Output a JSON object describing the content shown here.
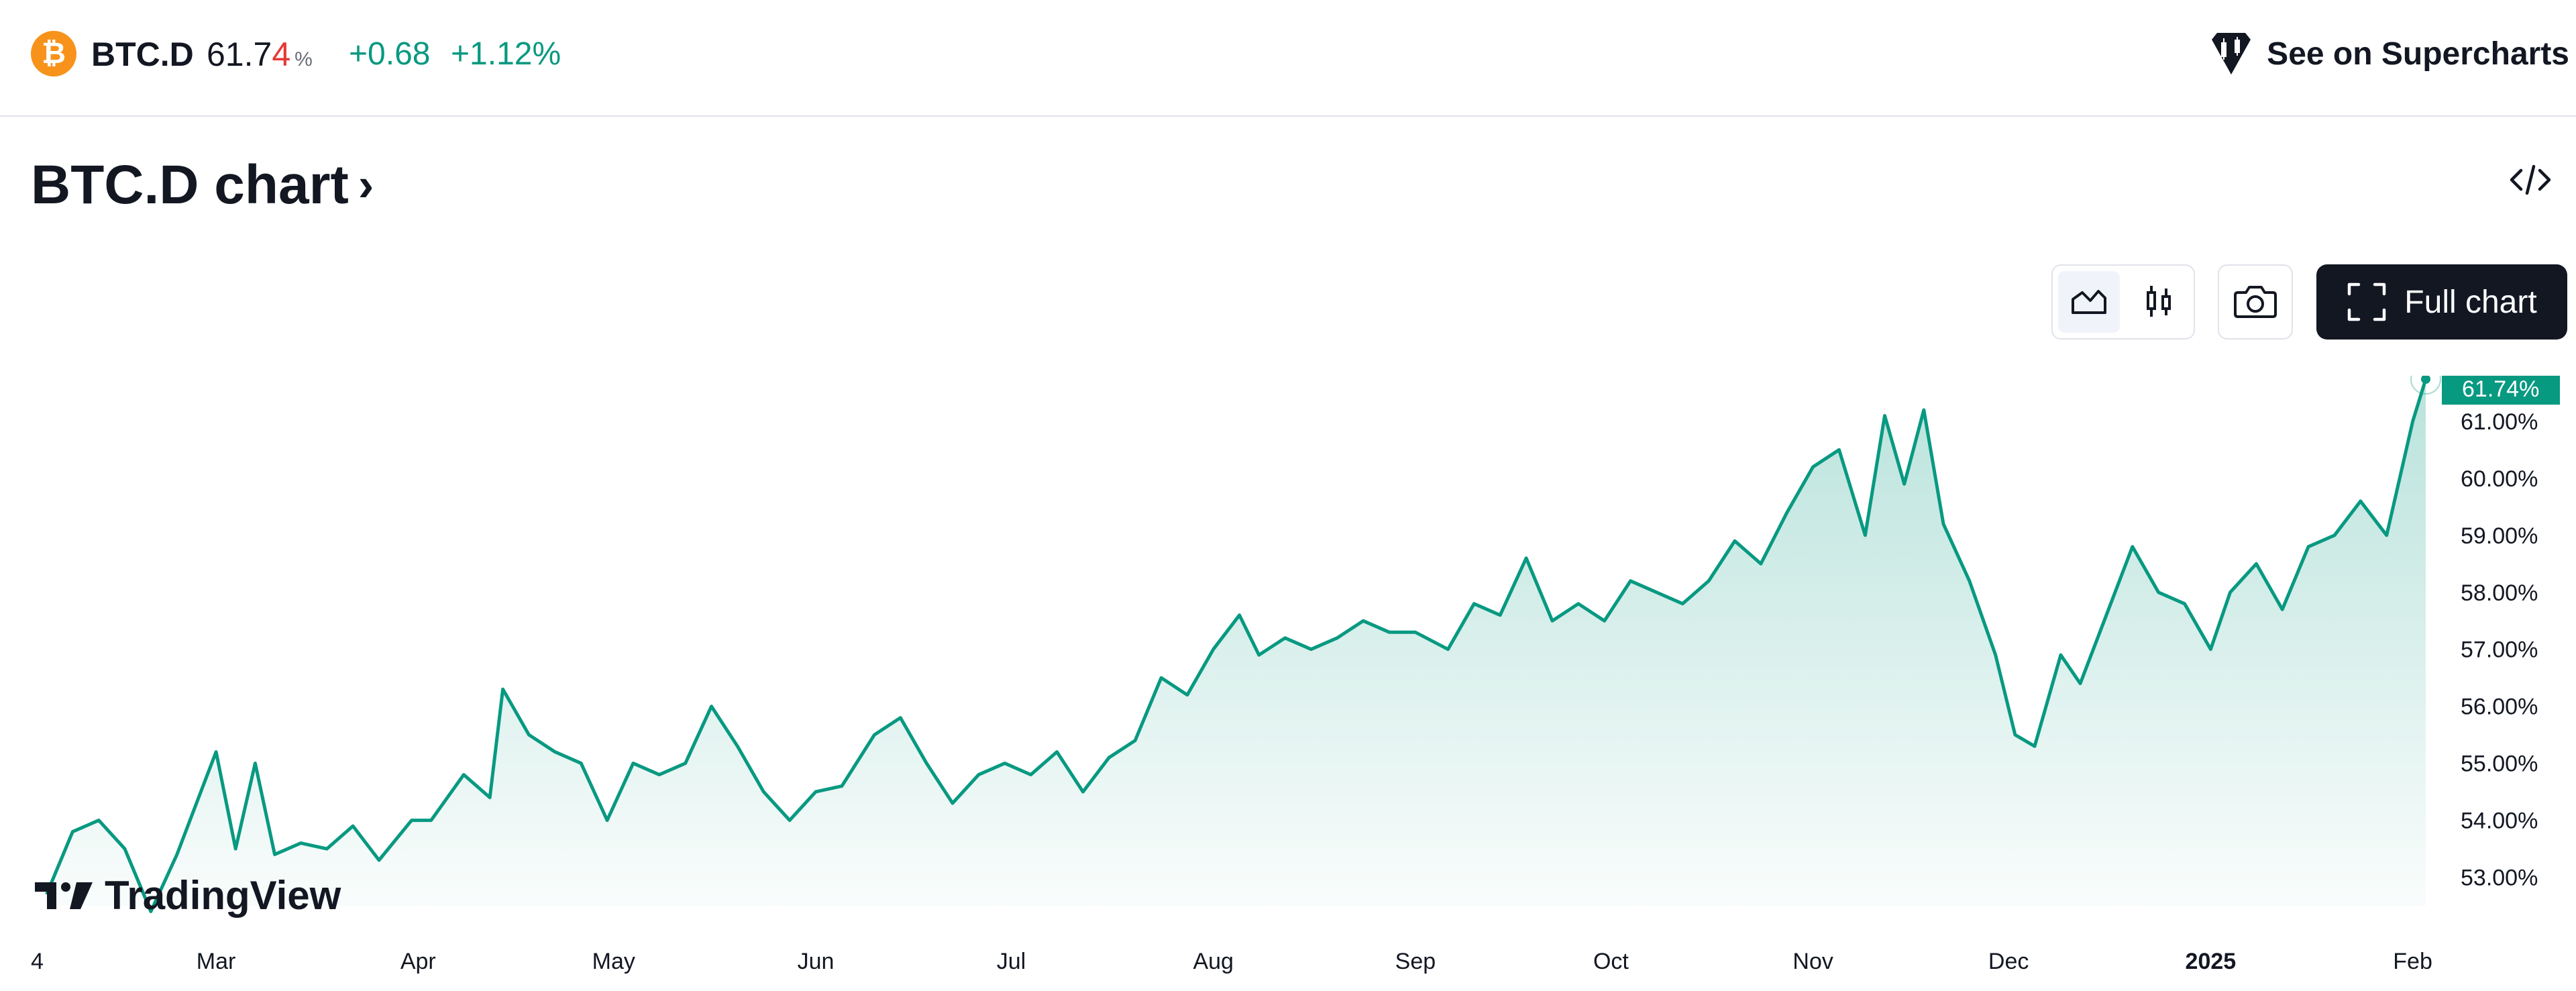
{
  "header": {
    "symbol": "BTC.D",
    "price_main": "61.7",
    "price_last_digit": "4",
    "price_unit": "%",
    "change": "+0.68",
    "change_percent": "+1.12%",
    "superchart_link": "See on Supercharts"
  },
  "title": {
    "text": "BTC.D chart",
    "chevron": "›"
  },
  "toolbar": {
    "full_chart_label": "Full chart"
  },
  "icons": {
    "coin": "bitcoin-icon",
    "supercharts": "supercharts-logo-icon",
    "embed": "embed-code-icon",
    "area": "area-chart-icon",
    "candles": "candlestick-icon",
    "snapshot": "camera-icon",
    "fullscreen": "fullscreen-icon"
  },
  "branding": {
    "logo_text": "TradingView"
  },
  "colors": {
    "accent": "#089981",
    "price_last": "#e53935",
    "dark": "#131722",
    "bitcoin": "#f7931a"
  },
  "chart_data": {
    "type": "area",
    "title": "",
    "xlabel": "",
    "ylabel": "",
    "ylim": [
      52.5,
      61.8
    ],
    "y_ticks": [
      "61.00%",
      "60.00%",
      "59.00%",
      "58.00%",
      "57.00%",
      "56.00%",
      "55.00%",
      "54.00%",
      "53.00%"
    ],
    "x_ticks": [
      "4",
      "Mar",
      "Apr",
      "May",
      "Jun",
      "Jul",
      "Aug",
      "Sep",
      "Oct",
      "Nov",
      "Dec",
      "2025",
      "Feb"
    ],
    "last_value_label": "61.74%",
    "series": [
      {
        "x": [
          "2024-02-04",
          "2024-02-08",
          "2024-02-12",
          "2024-02-16",
          "2024-02-20",
          "2024-02-24",
          "2024-02-28",
          "2024-03-01",
          "2024-03-04",
          "2024-03-07",
          "2024-03-10",
          "2024-03-14",
          "2024-03-18",
          "2024-03-22",
          "2024-03-26",
          "2024-03-31",
          "2024-04-03",
          "2024-04-08",
          "2024-04-12",
          "2024-04-14",
          "2024-04-18",
          "2024-04-22",
          "2024-04-26",
          "2024-04-30",
          "2024-05-04",
          "2024-05-08",
          "2024-05-12",
          "2024-05-16",
          "2024-05-20",
          "2024-05-24",
          "2024-05-28",
          "2024-06-01",
          "2024-06-05",
          "2024-06-10",
          "2024-06-14",
          "2024-06-18",
          "2024-06-22",
          "2024-06-26",
          "2024-06-30",
          "2024-07-04",
          "2024-07-08",
          "2024-07-12",
          "2024-07-16",
          "2024-07-20",
          "2024-07-24",
          "2024-07-28",
          "2024-08-01",
          "2024-08-05",
          "2024-08-08",
          "2024-08-12",
          "2024-08-16",
          "2024-08-20",
          "2024-08-24",
          "2024-08-28",
          "2024-09-01",
          "2024-09-06",
          "2024-09-10",
          "2024-09-14",
          "2024-09-18",
          "2024-09-22",
          "2024-09-26",
          "2024-09-30",
          "2024-10-04",
          "2024-10-08",
          "2024-10-12",
          "2024-10-16",
          "2024-10-20",
          "2024-10-24",
          "2024-10-28",
          "2024-11-01",
          "2024-11-05",
          "2024-11-09",
          "2024-11-12",
          "2024-11-15",
          "2024-11-18",
          "2024-11-21",
          "2024-11-25",
          "2024-11-29",
          "2024-12-02",
          "2024-12-05",
          "2024-12-09",
          "2024-12-12",
          "2024-12-16",
          "2024-12-20",
          "2024-12-24",
          "2024-12-28",
          "2025-01-01",
          "2025-01-04",
          "2025-01-08",
          "2025-01-12",
          "2025-01-16",
          "2025-01-20",
          "2025-01-24",
          "2025-01-28",
          "2025-02-01",
          "2025-02-03"
        ],
        "values": [
          52.7,
          53.8,
          54.0,
          53.5,
          52.4,
          53.4,
          54.6,
          55.2,
          53.5,
          55.0,
          53.4,
          53.6,
          53.5,
          53.9,
          53.3,
          54.0,
          54.0,
          54.8,
          54.4,
          56.3,
          55.5,
          55.2,
          55.0,
          54.0,
          55.0,
          54.8,
          55.0,
          56.0,
          55.3,
          54.5,
          54.0,
          54.5,
          54.6,
          55.5,
          55.8,
          55.0,
          54.3,
          54.8,
          55.0,
          54.8,
          55.2,
          54.5,
          55.1,
          55.4,
          56.5,
          56.2,
          57.0,
          57.6,
          56.9,
          57.2,
          57.0,
          57.2,
          57.5,
          57.3,
          57.3,
          57.0,
          57.8,
          57.6,
          58.6,
          57.5,
          57.8,
          57.5,
          58.2,
          58.0,
          57.8,
          58.2,
          58.9,
          58.5,
          59.4,
          60.2,
          60.5,
          59.0,
          61.1,
          59.9,
          61.2,
          59.2,
          58.2,
          56.9,
          55.5,
          55.3,
          56.9,
          56.4,
          57.6,
          58.8,
          58.0,
          57.8,
          57.0,
          58.0,
          58.5,
          57.7,
          58.8,
          59.0,
          59.6,
          59.0,
          61.0,
          61.74
        ]
      }
    ]
  }
}
